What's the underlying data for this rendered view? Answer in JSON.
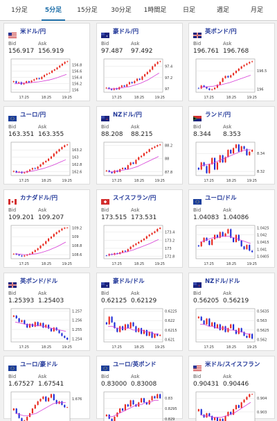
{
  "tabs": [
    "1分足",
    "5分足",
    "15分足",
    "30分足",
    "1時間足",
    "日足",
    "週足",
    "月足"
  ],
  "active_tab": 1,
  "labels": {
    "bid": "Bid",
    "ask": "Ask"
  },
  "colors": {
    "up": "#e8261c",
    "down": "#1d2bd6",
    "ma": "#d63cd6"
  },
  "cards": [
    {
      "pair": "米ドル/円",
      "bid": "156.917",
      "ask": "156.919",
      "flag": "us",
      "chart_data": {
        "type": "candlestick",
        "x_ticks": [
          "17:25",
          "18:25",
          "19:25"
        ],
        "y_ticks": [
          "156.8",
          "156.6",
          "156.4",
          "156.2",
          "156"
        ],
        "closes": [
          156.28,
          156.22,
          156.25,
          156.18,
          156.22,
          156.28,
          156.24,
          156.3,
          156.34,
          156.38,
          156.35,
          156.42,
          156.48,
          156.52,
          156.55,
          156.62,
          156.66,
          156.72,
          156.78,
          156.84,
          156.9,
          156.92
        ],
        "ma": [
          156.2,
          156.2,
          156.22,
          156.22,
          156.23,
          156.24,
          156.25,
          156.26,
          156.28,
          156.3,
          156.32,
          156.35,
          156.38,
          156.42,
          156.46,
          156.5
        ]
      }
    },
    {
      "pair": "豪ドル/円",
      "bid": "97.487",
      "ask": "97.492",
      "flag": "au",
      "chart_data": {
        "type": "candlestick",
        "x_ticks": [
          "17:25",
          "18:25",
          "19:25"
        ],
        "y_ticks": [
          "97.4",
          "97.2",
          "97"
        ],
        "closes": [
          97.02,
          97.0,
          96.98,
          97.01,
          96.99,
          97.03,
          97.06,
          97.04,
          97.08,
          97.12,
          97.1,
          97.14,
          97.18,
          97.16,
          97.22,
          97.26,
          97.3,
          97.34,
          97.4,
          97.44,
          97.48,
          97.49
        ],
        "ma": [
          97.0,
          97.0,
          97.0,
          97.01,
          97.02,
          97.03,
          97.04,
          97.06,
          97.08,
          97.1,
          97.13,
          97.16,
          97.2,
          97.24,
          97.28
        ]
      }
    },
    {
      "pair": "英ポンド/円",
      "bid": "196.761",
      "ask": "196.768",
      "flag": "gb",
      "chart_data": {
        "type": "candlestick",
        "x_ticks": [
          "17:25",
          "18:25",
          "19:25"
        ],
        "y_ticks": [
          "196.5",
          "196"
        ],
        "closes": [
          196.02,
          196.1,
          196.06,
          196.02,
          195.98,
          196.0,
          196.04,
          196.12,
          196.2,
          196.3,
          196.36,
          196.32,
          196.38,
          196.44,
          196.5,
          196.56,
          196.62,
          196.66,
          196.7,
          196.74,
          196.76
        ],
        "ma": [
          196.05,
          196.06,
          196.07,
          196.08,
          196.1,
          196.12,
          196.15,
          196.18,
          196.22,
          196.26,
          196.3,
          196.34,
          196.38
        ]
      }
    },
    {
      "pair": "ユーロ/円",
      "bid": "163.351",
      "ask": "163.355",
      "flag": "eu",
      "chart_data": {
        "type": "candlestick",
        "x_ticks": [
          "17:25",
          "18:25",
          "19:25"
        ],
        "y_ticks": [
          "163.2",
          "163",
          "162.8",
          "162.6"
        ],
        "closes": [
          162.62,
          162.58,
          162.6,
          162.56,
          162.58,
          162.62,
          162.66,
          162.7,
          162.68,
          162.74,
          162.8,
          162.86,
          162.9,
          162.96,
          163.02,
          163.1,
          163.16,
          163.22,
          163.28,
          163.33,
          163.35
        ],
        "ma": [
          162.58,
          162.58,
          162.59,
          162.6,
          162.62,
          162.64,
          162.67,
          162.7,
          162.74,
          162.78,
          162.83,
          162.88,
          162.93
        ]
      }
    },
    {
      "pair": "NZドル/円",
      "bid": "88.208",
      "ask": "88.215",
      "flag": "nz",
      "chart_data": {
        "type": "candlestick",
        "x_ticks": [
          "17:25",
          "18:25",
          "19:25"
        ],
        "y_ticks": [
          "88.2",
          "88",
          "87.8"
        ],
        "closes": [
          87.82,
          87.8,
          87.78,
          87.82,
          87.8,
          87.84,
          87.86,
          87.84,
          87.9,
          87.94,
          87.92,
          87.98,
          88.02,
          88.04,
          88.08,
          88.1,
          88.14,
          88.16,
          88.18,
          88.2,
          88.21
        ],
        "ma": [
          87.8,
          87.8,
          87.81,
          87.82,
          87.83,
          87.84,
          87.86,
          87.88,
          87.91,
          87.94,
          87.97,
          88.0,
          88.03
        ]
      }
    },
    {
      "pair": "ランド/円",
      "bid": "8.344",
      "ask": "8.353",
      "flag": "za",
      "chart_data": {
        "type": "candlestick",
        "x_ticks": [
          "17:25",
          "18:25",
          "19:25"
        ],
        "y_ticks": [
          "8.34",
          "8.32"
        ],
        "closes": [
          8.322,
          8.33,
          8.326,
          8.318,
          8.328,
          8.335,
          8.322,
          8.33,
          8.338,
          8.33,
          8.336,
          8.344,
          8.34,
          8.346,
          8.35,
          8.342,
          8.348,
          8.345,
          8.338,
          8.342,
          8.344
        ],
        "ma": [
          8.326,
          8.327,
          8.328,
          8.329,
          8.331,
          8.333,
          8.335,
          8.337,
          8.339,
          8.341,
          8.343,
          8.344,
          8.344
        ]
      }
    },
    {
      "pair": "カナダドル/円",
      "bid": "109.201",
      "ask": "109.207",
      "flag": "ca",
      "chart_data": {
        "type": "candlestick",
        "x_ticks": [
          "17:25",
          "18:25",
          "19:25"
        ],
        "y_ticks": [
          "109.2",
          "109",
          "108.8",
          "108.6"
        ],
        "closes": [
          108.62,
          108.6,
          108.58,
          108.56,
          108.58,
          108.6,
          108.62,
          108.66,
          108.7,
          108.74,
          108.8,
          108.84,
          108.9,
          108.96,
          109.0,
          109.06,
          109.1,
          109.14,
          109.18,
          109.2,
          109.2
        ],
        "ma": [
          108.62,
          108.61,
          108.6,
          108.6,
          108.61,
          108.62,
          108.64,
          108.67,
          108.7,
          108.74,
          108.78,
          108.83,
          108.88
        ]
      }
    },
    {
      "pair": "スイスフラン/円",
      "bid": "173.515",
      "ask": "173.531",
      "flag": "ch",
      "chart_data": {
        "type": "candlestick",
        "x_ticks": [
          "17:25",
          "18:25",
          "19:25"
        ],
        "y_ticks": [
          "173.4",
          "173.2",
          "173",
          "172.8"
        ],
        "closes": [
          172.82,
          172.86,
          172.84,
          172.88,
          172.86,
          172.9,
          172.94,
          172.92,
          172.98,
          173.04,
          173.08,
          173.12,
          173.16,
          173.2,
          173.24,
          173.3,
          173.34,
          173.38,
          173.42,
          173.48,
          173.51
        ],
        "ma": [
          172.84,
          172.85,
          172.86,
          172.88,
          172.9,
          172.93,
          172.96,
          173.0,
          173.04,
          173.08,
          173.12,
          173.17,
          173.22
        ]
      }
    },
    {
      "pair": "ユーロ/ドル",
      "bid": "1.04083",
      "ask": "1.04086",
      "flag": "eu",
      "chart_data": {
        "type": "candlestick",
        "x_ticks": [
          "17:25",
          "18:25",
          "19:25"
        ],
        "y_ticks": [
          "1.0425",
          "1.042",
          "1.0415",
          "1.041",
          "1.0405"
        ],
        "closes": [
          1.0412,
          1.0415,
          1.0418,
          1.0416,
          1.0413,
          1.0417,
          1.042,
          1.0418,
          1.0422,
          1.0419,
          1.0421,
          1.0424,
          1.0418,
          1.0415,
          1.042,
          1.0416,
          1.0412,
          1.041,
          1.0413,
          1.0409,
          1.0408
        ],
        "ma": [
          1.0415,
          1.0416,
          1.0417,
          1.0418,
          1.0418,
          1.0419,
          1.0419,
          1.0419,
          1.0418,
          1.0417,
          1.0416,
          1.0415,
          1.0414
        ]
      }
    },
    {
      "pair": "英ポンド/ドル",
      "bid": "1.25393",
      "ask": "1.25403",
      "flag": "gb",
      "chart_data": {
        "type": "candlestick",
        "x_ticks": [
          "17:25",
          "18:25",
          "19:25"
        ],
        "y_ticks": [
          "1.257",
          "1.256",
          "1.255",
          "1.254"
        ],
        "closes": [
          1.2565,
          1.2562,
          1.2558,
          1.256,
          1.2556,
          1.2552,
          1.2556,
          1.2553,
          1.2558,
          1.2554,
          1.2557,
          1.2552,
          1.2555,
          1.2551,
          1.2548,
          1.2552,
          1.2549,
          1.2546,
          1.2543,
          1.2541,
          1.2539
        ],
        "ma": [
          1.2558,
          1.2557,
          1.2556,
          1.2555,
          1.2555,
          1.2554,
          1.2554,
          1.2553,
          1.2552,
          1.2551,
          1.255,
          1.2549,
          1.2548
        ]
      }
    },
    {
      "pair": "豪ドル/ドル",
      "bid": "0.62125",
      "ask": "0.62129",
      "flag": "au",
      "chart_data": {
        "type": "candlestick",
        "x_ticks": [
          "17:25",
          "18:25",
          "19:25"
        ],
        "y_ticks": [
          "0.6225",
          "0.622",
          "0.6215",
          "0.621"
        ],
        "closes": [
          0.6218,
          0.6222,
          0.6219,
          0.6216,
          0.6214,
          0.6217,
          0.6215,
          0.6218,
          0.6216,
          0.6219,
          0.6217,
          0.6214,
          0.6216,
          0.6213,
          0.6215,
          0.6212,
          0.6214,
          0.6211,
          0.6213,
          0.6212,
          0.62125
        ],
        "ma": [
          0.6217,
          0.6217,
          0.6216,
          0.6216,
          0.6216,
          0.6216,
          0.6215,
          0.6215,
          0.6215,
          0.6214,
          0.6214,
          0.6213,
          0.6213
        ]
      }
    },
    {
      "pair": "NZドル/ドル",
      "bid": "0.56205",
      "ask": "0.56219",
      "flag": "nz",
      "chart_data": {
        "type": "candlestick",
        "x_ticks": [
          "17:25",
          "18:25",
          "19:25"
        ],
        "y_ticks": [
          "0.5635",
          "0.563",
          "0.5625",
          "0.562"
        ],
        "closes": [
          0.5632,
          0.563,
          0.5628,
          0.5631,
          0.5627,
          0.5629,
          0.5626,
          0.5628,
          0.5625,
          0.5627,
          0.5624,
          0.5626,
          0.5628,
          0.5625,
          0.5623,
          0.5626,
          0.5624,
          0.5622,
          0.5621,
          0.5623,
          0.56205
        ],
        "ma": [
          0.5628,
          0.5628,
          0.5627,
          0.5627,
          0.5626,
          0.5626,
          0.5626,
          0.5625,
          0.5625,
          0.5624,
          0.5624,
          0.5623,
          0.5623
        ]
      }
    },
    {
      "pair": "ユーロ/豪ドル",
      "bid": "1.67527",
      "ask": "1.67541",
      "flag": "eu",
      "chart_data": {
        "type": "candlestick",
        "x_ticks": [
          "17:25",
          "18:25",
          "19:25"
        ],
        "y_ticks": [
          "1.676",
          "1.674"
        ],
        "closes": [
          1.6752,
          1.6748,
          1.6744,
          1.674,
          1.6742,
          1.6745,
          1.6748,
          1.6752,
          1.6755,
          1.6758,
          1.676,
          1.6762,
          1.6758,
          1.6761,
          1.6764,
          1.6759,
          1.6756,
          1.6758,
          1.6755,
          1.6753,
          1.6753
        ],
        "ma": [
          1.6748,
          1.6747,
          1.6746,
          1.6746,
          1.6747,
          1.6748,
          1.675,
          1.6752,
          1.6754,
          1.6756,
          1.6757,
          1.6757,
          1.6757
        ]
      }
    },
    {
      "pair": "ユーロ/英ポンド",
      "bid": "0.83000",
      "ask": "0.83008",
      "flag": "eu",
      "chart_data": {
        "type": "candlestick",
        "x_ticks": [
          "17:25",
          "18:25",
          "19:25"
        ],
        "y_ticks": [
          "0.83",
          "0.8295",
          "0.829"
        ],
        "closes": [
          0.8292,
          0.829,
          0.8288,
          0.8291,
          0.8293,
          0.8295,
          0.8294,
          0.8297,
          0.8296,
          0.8299,
          0.8297,
          0.8296,
          0.8298,
          0.83,
          0.8298,
          0.8297,
          0.8299,
          0.8301,
          0.83,
          0.8302,
          0.83
        ],
        "ma": [
          0.8291,
          0.8291,
          0.8292,
          0.8293,
          0.8294,
          0.8295,
          0.8296,
          0.8297,
          0.8297,
          0.8298,
          0.8298,
          0.8299,
          0.8299
        ]
      }
    },
    {
      "pair": "米ドル/スイスフラン",
      "bid": "0.90431",
      "ask": "0.90446",
      "flag": "us",
      "chart_data": {
        "type": "candlestick",
        "x_ticks": [
          "17:25",
          "18:25",
          "19:25"
        ],
        "y_ticks": [
          "0.904",
          "0.903"
        ],
        "closes": [
          0.9032,
          0.9028,
          0.9026,
          0.9029,
          0.9027,
          0.9024,
          0.9026,
          0.9022,
          0.9025,
          0.9023,
          0.9027,
          0.903,
          0.9028,
          0.9032,
          0.9035,
          0.9033,
          0.9037,
          0.9039,
          0.9041,
          0.9043,
          0.9043
        ],
        "ma": [
          0.9028,
          0.9027,
          0.9027,
          0.9026,
          0.9026,
          0.9026,
          0.9027,
          0.9028,
          0.9029,
          0.9031,
          0.9033,
          0.9035,
          0.9037
        ]
      }
    }
  ]
}
